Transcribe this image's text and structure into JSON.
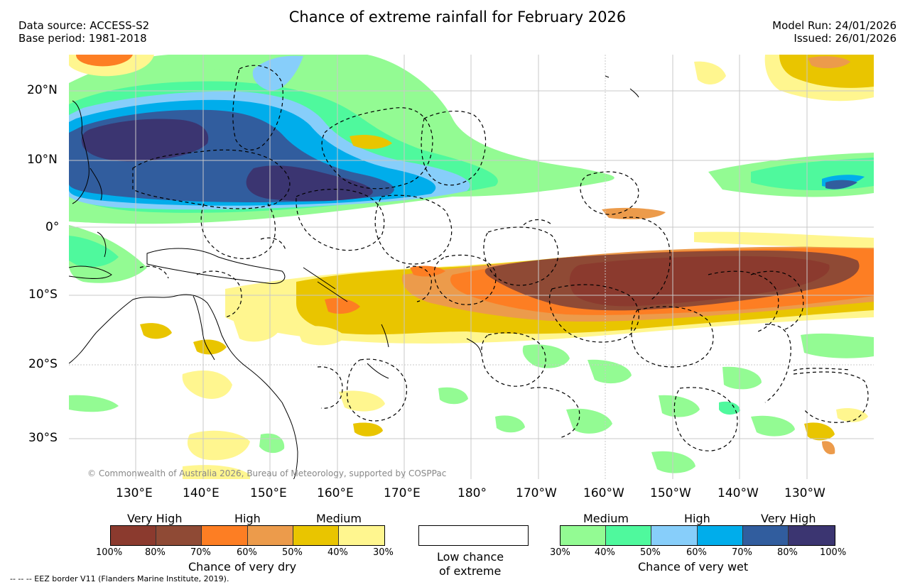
{
  "header": {
    "title": "Chance of extreme rainfall for February 2026",
    "data_source": "Data source: ACCESS-S2",
    "base_period": "Base period: 1981-2018",
    "model_run": "Model Run: 24/01/2026",
    "issued": "Issued: 26/01/2026"
  },
  "map": {
    "lat_labels": [
      "20°N",
      "10°N",
      "0°",
      "10°S",
      "20°S",
      "30°S"
    ],
    "lon_labels": [
      "130°E",
      "140°E",
      "150°E",
      "160°E",
      "170°E",
      "180°",
      "170°W",
      "160°W",
      "150°W",
      "140°W",
      "130°W"
    ],
    "copyright": "© Commonwealth of Australia 2026, Bureau of Meteorology, supported by COSPPac",
    "colors": {
      "dry_100_80": "#8b3a2e",
      "dry_80_70": "#8f4a35",
      "dry_70_60": "#fd7e23",
      "dry_60_50": "#ec9b4b",
      "dry_50_40": "#e9c500",
      "dry_40_30": "#fff68f",
      "wet_30_40": "#93fb93",
      "wet_40_50": "#4ff99d",
      "wet_50_60": "#87cefa",
      "wet_60_70": "#00adeb",
      "wet_70_80": "#315d9e",
      "wet_80_100": "#3b3571",
      "land_outline": "#000000",
      "gridline": "#c8c8c8"
    }
  },
  "legend": {
    "dry": {
      "categories": [
        "Very High",
        "High",
        "Medium"
      ],
      "percent_labels": [
        "100%",
        "80%",
        "70%",
        "60%",
        "50%",
        "40%",
        "30%"
      ],
      "title": "Chance of very dry"
    },
    "low": {
      "line1": "Low chance",
      "line2": "of extreme"
    },
    "wet": {
      "categories": [
        "Medium",
        "High",
        "Very High"
      ],
      "percent_labels": [
        "30%",
        "40%",
        "50%",
        "60%",
        "70%",
        "80%",
        "100%"
      ],
      "title": "Chance of very wet"
    }
  },
  "footer": {
    "eez": "--  --  -- EEZ border V11 (Flanders Marine Institute, 2019)."
  }
}
